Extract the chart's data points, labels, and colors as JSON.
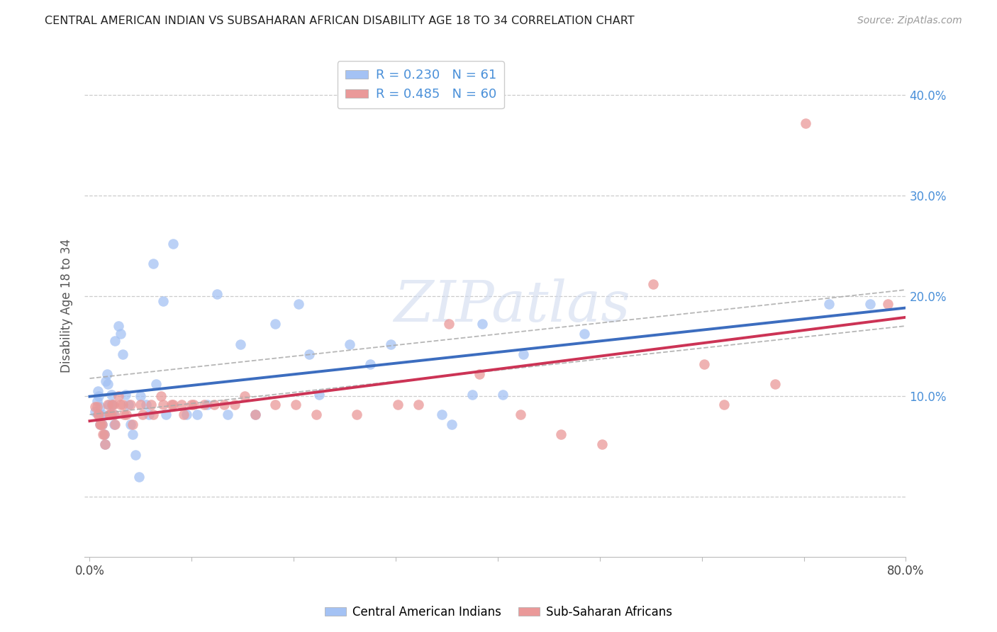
{
  "title": "CENTRAL AMERICAN INDIAN VS SUBSAHARAN AFRICAN DISABILITY AGE 18 TO 34 CORRELATION CHART",
  "source": "Source: ZipAtlas.com",
  "ylabel": "Disability Age 18 to 34",
  "xlim": [
    -0.005,
    0.8
  ],
  "ylim": [
    -0.06,
    0.44
  ],
  "blue_R": 0.23,
  "blue_N": 61,
  "pink_R": 0.485,
  "pink_N": 60,
  "blue_color": "#a4c2f4",
  "pink_color": "#ea9999",
  "blue_line_color": "#3c6dbf",
  "pink_line_color": "#cc3355",
  "watermark_text": "ZIPatlas",
  "blue_x": [
    0.005,
    0.007,
    0.008,
    0.009,
    0.01,
    0.01,
    0.01,
    0.012,
    0.013,
    0.014,
    0.015,
    0.016,
    0.017,
    0.018,
    0.019,
    0.02,
    0.021,
    0.022,
    0.023,
    0.024,
    0.025,
    0.028,
    0.03,
    0.032,
    0.035,
    0.038,
    0.04,
    0.042,
    0.045,
    0.048,
    0.05,
    0.055,
    0.058,
    0.062,
    0.065,
    0.072,
    0.075,
    0.082,
    0.095,
    0.105,
    0.115,
    0.125,
    0.135,
    0.148,
    0.162,
    0.182,
    0.205,
    0.215,
    0.225,
    0.255,
    0.275,
    0.295,
    0.345,
    0.355,
    0.375,
    0.385,
    0.405,
    0.425,
    0.485,
    0.725,
    0.765
  ],
  "blue_y": [
    0.085,
    0.095,
    0.105,
    0.1,
    0.09,
    0.082,
    0.072,
    0.072,
    0.082,
    0.062,
    0.052,
    0.115,
    0.122,
    0.112,
    0.092,
    0.082,
    0.102,
    0.092,
    0.082,
    0.072,
    0.155,
    0.17,
    0.162,
    0.142,
    0.102,
    0.092,
    0.072,
    0.062,
    0.042,
    0.02,
    0.1,
    0.092,
    0.082,
    0.232,
    0.112,
    0.195,
    0.082,
    0.252,
    0.082,
    0.082,
    0.092,
    0.202,
    0.082,
    0.152,
    0.082,
    0.172,
    0.192,
    0.142,
    0.102,
    0.152,
    0.132,
    0.152,
    0.082,
    0.072,
    0.102,
    0.172,
    0.102,
    0.142,
    0.162,
    0.192,
    0.192
  ],
  "pink_x": [
    0.005,
    0.007,
    0.008,
    0.009,
    0.01,
    0.011,
    0.012,
    0.013,
    0.014,
    0.015,
    0.018,
    0.019,
    0.02,
    0.021,
    0.022,
    0.023,
    0.024,
    0.025,
    0.028,
    0.03,
    0.032,
    0.034,
    0.036,
    0.04,
    0.042,
    0.05,
    0.052,
    0.06,
    0.062,
    0.07,
    0.072,
    0.08,
    0.082,
    0.09,
    0.092,
    0.1,
    0.102,
    0.112,
    0.122,
    0.132,
    0.142,
    0.152,
    0.162,
    0.182,
    0.202,
    0.222,
    0.262,
    0.302,
    0.322,
    0.352,
    0.382,
    0.422,
    0.462,
    0.502,
    0.552,
    0.602,
    0.622,
    0.672,
    0.702,
    0.782
  ],
  "pink_y": [
    0.09,
    0.09,
    0.082,
    0.082,
    0.072,
    0.072,
    0.072,
    0.062,
    0.062,
    0.052,
    0.092,
    0.082,
    0.082,
    0.082,
    0.092,
    0.092,
    0.082,
    0.072,
    0.1,
    0.092,
    0.092,
    0.082,
    0.082,
    0.092,
    0.072,
    0.092,
    0.082,
    0.092,
    0.082,
    0.1,
    0.092,
    0.092,
    0.092,
    0.092,
    0.082,
    0.092,
    0.092,
    0.092,
    0.092,
    0.092,
    0.092,
    0.1,
    0.082,
    0.092,
    0.092,
    0.082,
    0.082,
    0.092,
    0.092,
    0.172,
    0.122,
    0.082,
    0.062,
    0.052,
    0.212,
    0.132,
    0.092,
    0.112,
    0.372,
    0.192
  ]
}
